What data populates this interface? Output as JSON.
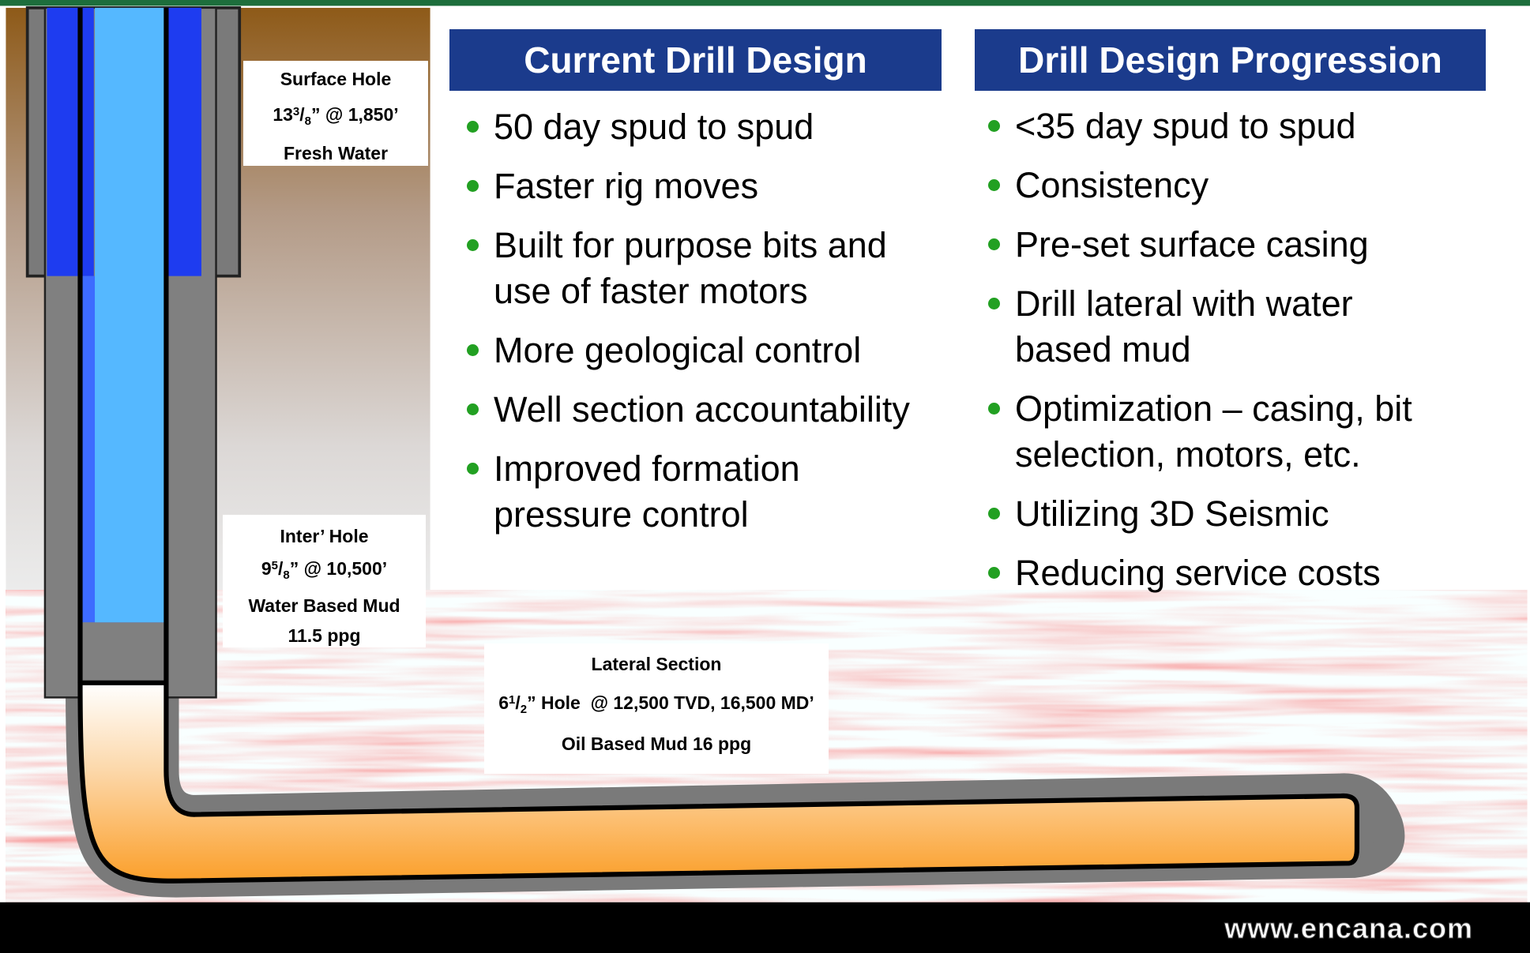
{
  "well_labels": {
    "surface": {
      "title": "Surface Hole",
      "size": {
        "whole": "13",
        "num": "3",
        "slash": "/",
        "den": "8",
        "rest": "” @ 1,850’"
      },
      "fluid": "Fresh Water"
    },
    "intermediate": {
      "title": "Inter’ Hole",
      "size": {
        "whole": "9",
        "num": "5",
        "slash": "/",
        "den": "8",
        "rest": "” @ 10,500’"
      },
      "fluid": "Water Based Mud",
      "weight": "11.5 ppg"
    },
    "lateral": {
      "title": "Lateral Section",
      "size": {
        "whole": "6",
        "num": "1",
        "slash": "/",
        "den": "2",
        "rest": "” Hole  @ 12,500 TVD, 16,500 MD’"
      },
      "fluid": "Oil Based Mud 16 ppg"
    }
  },
  "panels": [
    {
      "title": "Current Drill Design",
      "bullets": [
        "50 day spud to spud",
        "Faster rig moves",
        "Built for purpose bits and use of faster motors",
        "More geological control",
        "Well section accountability",
        "Improved formation pressure control"
      ]
    },
    {
      "title": "Drill Design Progression",
      "bullets": [
        "<35 day spud to spud",
        "Consistency",
        "Pre-set surface casing",
        "Drill lateral with water based mud",
        "Optimization – casing, bit selection, motors, etc.",
        "Utilizing 3D Seismic",
        "Reducing service costs"
      ]
    }
  ],
  "footer": {
    "url": "www.encana.com"
  }
}
